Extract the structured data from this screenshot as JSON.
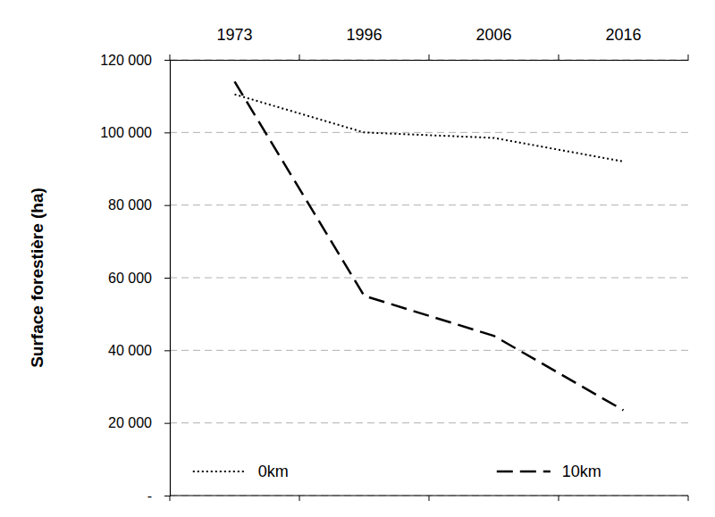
{
  "chart_data": {
    "type": "line",
    "y_label": "Surface forestière (ha)",
    "categories": [
      "1973",
      "1996",
      "2006",
      "2016"
    ],
    "series": [
      {
        "name": "0km",
        "color": "#000000",
        "line_style": "dotted",
        "values": [
          110500,
          100000,
          98500,
          92000
        ]
      },
      {
        "name": "10km",
        "color": "#000000",
        "line_style": "dashed",
        "values": [
          114000,
          55000,
          44000,
          23500
        ]
      }
    ],
    "ylim": [
      0,
      120000
    ],
    "yticks": [
      {
        "value": 0,
        "label": "-"
      },
      {
        "value": 20000,
        "label": "20 000"
      },
      {
        "value": 40000,
        "label": "40 000"
      },
      {
        "value": 60000,
        "label": "60 000"
      },
      {
        "value": 80000,
        "label": "80 000"
      },
      {
        "value": 100000,
        "label": "100 000"
      },
      {
        "value": 120000,
        "label": "120 000"
      }
    ],
    "grid": true,
    "legend": "bottom"
  }
}
